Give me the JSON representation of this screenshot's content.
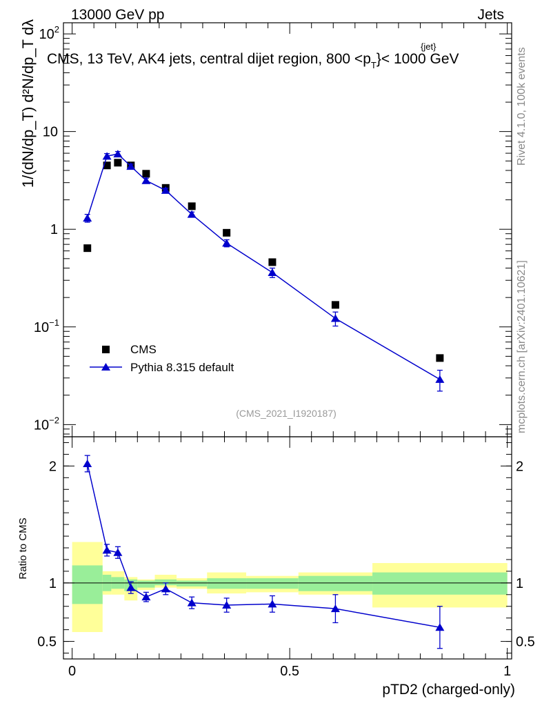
{
  "header": {
    "left_title": "13000 GeV pp",
    "right_title": "Jets",
    "plot_title": "CMS, 13 TeV, AK4 jets, central dijet region, 800 <p",
    "plot_title_sub": "T",
    "plot_title_sup": "{jet}",
    "plot_title_end": "}< 1000 GeV",
    "watermark": "(CMS_2021_I1920187)",
    "side_rivet": "Rivet 4.1.0,  100k events",
    "side_mcplots": "mcplots.cern.ch [arXiv:2401.10621]"
  },
  "chart_data": [
    {
      "type": "scatter",
      "panel": "main",
      "title": "CMS, 13 TeV, AK4 jets, central dijet region, 800 <p_T^{jet}< 1000 GeV",
      "xlabel": "pTD2 (charged-only)",
      "ylabel": "1/(dN/dp_T) d^2N/(dp_T dλ)",
      "yscale": "log",
      "xlim": [
        -0.02,
        1.01
      ],
      "ylim": [
        0.0075,
        130
      ],
      "y_ticks": [
        {
          "value": 0.01,
          "base": "10",
          "exp": "−2"
        },
        {
          "value": 0.1,
          "base": "10",
          "exp": "−1"
        },
        {
          "value": 1,
          "base": "1",
          "exp": ""
        },
        {
          "value": 10,
          "base": "10",
          "exp": ""
        },
        {
          "value": 100,
          "base": "10",
          "exp": "2"
        }
      ],
      "legend": {
        "position": "bottom-left",
        "entries": [
          "CMS",
          "Pythia 8.315 default"
        ]
      },
      "series": [
        {
          "name": "CMS",
          "marker": "square",
          "color": "#000000",
          "x": [
            0.035,
            0.08,
            0.105,
            0.135,
            0.17,
            0.215,
            0.275,
            0.355,
            0.46,
            0.605,
            0.845
          ],
          "y": [
            0.64,
            4.5,
            4.8,
            4.5,
            3.7,
            2.65,
            1.72,
            0.92,
            0.46,
            0.168,
            0.048
          ],
          "yerr": [
            0,
            0,
            0,
            0,
            0,
            0,
            0,
            0,
            0,
            0,
            0
          ]
        },
        {
          "name": "Pythia 8.315 default",
          "marker": "triangle",
          "color": "#0000cc",
          "x": [
            0.035,
            0.08,
            0.105,
            0.135,
            0.17,
            0.215,
            0.275,
            0.355,
            0.46,
            0.605,
            0.845
          ],
          "y": [
            1.3,
            5.6,
            5.9,
            4.4,
            3.15,
            2.5,
            1.42,
            0.72,
            0.36,
            0.122,
            0.029
          ],
          "yerr": [
            0.12,
            0.35,
            0.35,
            0.25,
            0.18,
            0.13,
            0.08,
            0.06,
            0.04,
            0.02,
            0.007
          ]
        }
      ]
    },
    {
      "type": "scatter",
      "panel": "ratio",
      "xlabel": "pTD2 (charged-only)",
      "ylabel": "Ratio to CMS",
      "xlim": [
        -0.02,
        1.01
      ],
      "ylim": [
        0.35,
        2.25
      ],
      "x_ticks": [
        {
          "value": 0,
          "label": "0"
        },
        {
          "value": 0.5,
          "label": "0.5"
        },
        {
          "value": 1,
          "label": "1"
        }
      ],
      "y_ticks": [
        {
          "value": 0.5,
          "label": "0.5"
        },
        {
          "value": 1,
          "label": "1"
        },
        {
          "value": 2,
          "label": "2"
        }
      ],
      "bands": [
        {
          "x0": 0.0,
          "x1": 0.07,
          "yellow": [
            0.58,
            1.35
          ],
          "green": [
            0.82,
            1.15
          ]
        },
        {
          "x0": 0.07,
          "x1": 0.09,
          "yellow": [
            0.9,
            1.1
          ],
          "green": [
            0.93,
            1.07
          ]
        },
        {
          "x0": 0.09,
          "x1": 0.12,
          "yellow": [
            0.9,
            1.1
          ],
          "green": [
            0.95,
            1.05
          ]
        },
        {
          "x0": 0.12,
          "x1": 0.15,
          "yellow": [
            0.85,
            1.05
          ],
          "green": [
            0.93,
            1.03
          ]
        },
        {
          "x0": 0.15,
          "x1": 0.19,
          "yellow": [
            0.94,
            1.03
          ],
          "green": [
            0.96,
            1.02
          ]
        },
        {
          "x0": 0.19,
          "x1": 0.24,
          "yellow": [
            0.96,
            1.07
          ],
          "green": [
            0.98,
            1.03
          ]
        },
        {
          "x0": 0.24,
          "x1": 0.31,
          "yellow": [
            0.95,
            1.04
          ],
          "green": [
            0.97,
            1.02
          ]
        },
        {
          "x0": 0.31,
          "x1": 0.4,
          "yellow": [
            0.91,
            1.09
          ],
          "green": [
            0.95,
            1.04
          ]
        },
        {
          "x0": 0.4,
          "x1": 0.52,
          "yellow": [
            0.92,
            1.06
          ],
          "green": [
            0.95,
            1.04
          ]
        },
        {
          "x0": 0.52,
          "x1": 0.69,
          "yellow": [
            0.9,
            1.09
          ],
          "green": [
            0.93,
            1.06
          ]
        },
        {
          "x0": 0.69,
          "x1": 1.0,
          "yellow": [
            0.79,
            1.17
          ],
          "green": [
            0.9,
            1.09
          ]
        }
      ],
      "series": [
        {
          "name": "Pythia 8.315 default",
          "marker": "triangle",
          "color": "#0000cc",
          "x": [
            0.035,
            0.08,
            0.105,
            0.135,
            0.17,
            0.215,
            0.275,
            0.355,
            0.46,
            0.605,
            0.845
          ],
          "y": [
            2.02,
            1.28,
            1.26,
            0.96,
            0.88,
            0.95,
            0.83,
            0.81,
            0.82,
            0.78,
            0.62
          ],
          "yerr": [
            0.07,
            0.05,
            0.05,
            0.05,
            0.04,
            0.05,
            0.05,
            0.06,
            0.07,
            0.12,
            0.18
          ]
        }
      ]
    }
  ]
}
